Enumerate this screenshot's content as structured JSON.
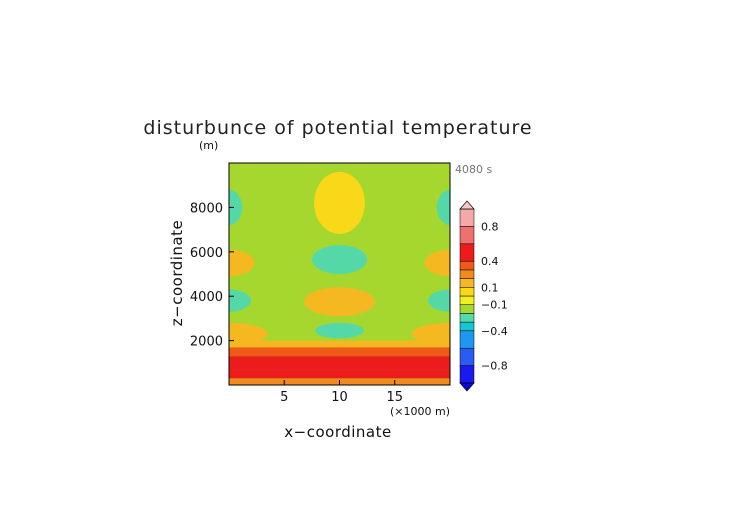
{
  "chart_data": {
    "type": "heatmap",
    "title": "disturbunce of potential temperature",
    "xlabel": "x−coordinate",
    "ylabel": "z−coordinate",
    "x_unit": "(×1000 m)",
    "y_unit": "(m)",
    "time_label": "4080 s",
    "xlim": [
      0,
      20
    ],
    "ylim": [
      0,
      10000
    ],
    "x_ticks": [
      5,
      10,
      15
    ],
    "x_tick_labels": [
      "5",
      "10",
      "15"
    ],
    "y_ticks": [
      2000,
      4000,
      6000,
      8000
    ],
    "y_tick_labels": [
      "2000",
      "4000",
      "6000",
      "8000"
    ],
    "colorbar": {
      "levels": [
        -1.0,
        -0.8,
        -0.6,
        -0.4,
        -0.3,
        -0.2,
        -0.1,
        0.0,
        0.1,
        0.2,
        0.3,
        0.4,
        0.6,
        0.8,
        1.0
      ],
      "colors": [
        "#1a1af0",
        "#2a5cf5",
        "#1f96f0",
        "#14c8d0",
        "#55d8a8",
        "#a6d72e",
        "#f0f020",
        "#f8d818",
        "#f5b820",
        "#f08c1e",
        "#f05a18",
        "#ec1c1c",
        "#f07070",
        "#f4a8a8"
      ],
      "under_color": "#0a0ad8",
      "over_color": "#f8c8c8",
      "tick_values": [
        0.8,
        0.4,
        0.1,
        -0.1,
        -0.4,
        -0.8
      ],
      "tick_labels": [
        "0.8",
        "0.4",
        "0.1",
        "−0.1",
        "−0.4",
        "−0.8"
      ]
    },
    "features": [
      {
        "value": 0.0,
        "x": 10,
        "z": 8200,
        "rx": 2.3,
        "rz": 1400
      },
      {
        "value": -0.25,
        "x": 10,
        "z": 5650,
        "rx": 2.5,
        "rz": 650
      },
      {
        "value": -0.25,
        "x": 0,
        "z": 8000,
        "rx": 1.2,
        "rz": 800
      },
      {
        "value": -0.25,
        "x": 20,
        "z": 8000,
        "rx": 1.2,
        "rz": 800
      },
      {
        "value": 0.15,
        "x": 0,
        "z": 5500,
        "rx": 2.3,
        "rz": 600
      },
      {
        "value": 0.15,
        "x": 20,
        "z": 5500,
        "rx": 2.3,
        "rz": 600
      },
      {
        "value": 0.15,
        "x": 10,
        "z": 3750,
        "rx": 3.2,
        "rz": 650
      },
      {
        "value": -0.25,
        "x": 0,
        "z": 3800,
        "rx": 2.0,
        "rz": 500
      },
      {
        "value": -0.25,
        "x": 20,
        "z": 3800,
        "rx": 2.0,
        "rz": 500
      },
      {
        "value": -0.25,
        "x": 10,
        "z": 2450,
        "rx": 2.2,
        "rz": 350
      },
      {
        "value": 0.15,
        "x": 0,
        "z": 2300,
        "rx": 3.5,
        "rz": 500
      },
      {
        "value": 0.15,
        "x": 20,
        "z": 2300,
        "rx": 3.5,
        "rz": 500
      }
    ],
    "background_value": -0.15,
    "vertical_bands": [
      {
        "z_from": 0,
        "z_to": 300,
        "value": 0.25
      },
      {
        "z_from": 300,
        "z_to": 700,
        "value": 0.45
      },
      {
        "z_from": 700,
        "z_to": 1300,
        "value": 0.55
      },
      {
        "z_from": 1300,
        "z_to": 1700,
        "value": 0.35
      },
      {
        "z_from": 1700,
        "z_to": 2000,
        "value": 0.15
      }
    ],
    "grid": false
  }
}
